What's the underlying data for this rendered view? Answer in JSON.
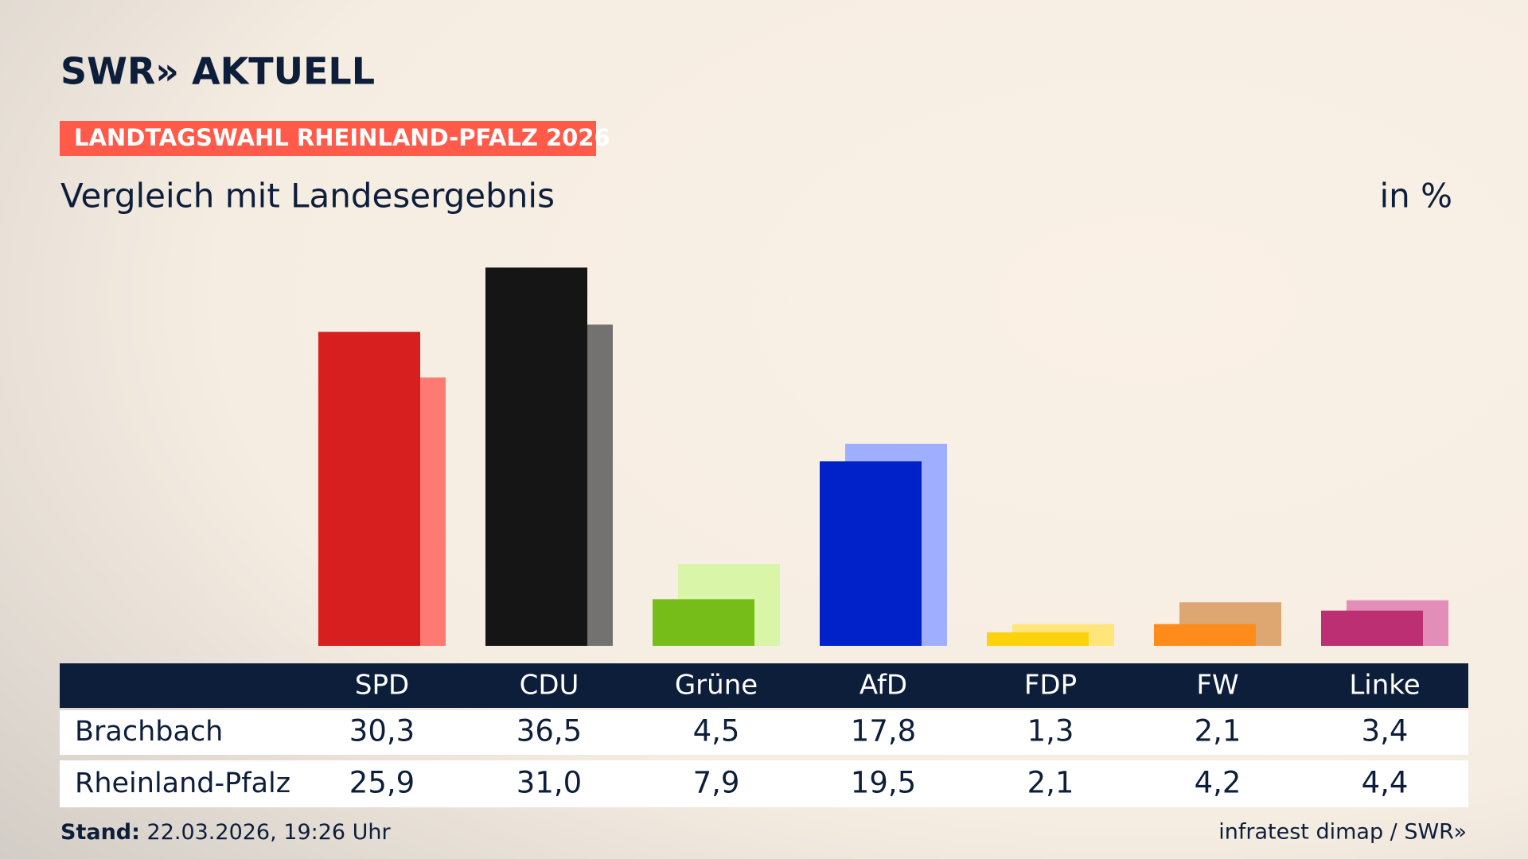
{
  "chart_data": {
    "type": "bar",
    "brand": "SWR» AKTUELL",
    "badge": "LANDTAGSWAHL RHEINLAND-PFALZ 2026",
    "title": "Vergleich mit Landesergebnis",
    "unit": "in %",
    "categories": [
      "SPD",
      "CDU",
      "Grüne",
      "AfD",
      "FDP",
      "FW",
      "Linke"
    ],
    "series": [
      {
        "name": "Brachbach",
        "colors": [
          "#d71f1f",
          "#151515",
          "#76bd1a",
          "#0022c8",
          "#fcd20c",
          "#ff8c1a",
          "#bc2f72"
        ],
        "values": [
          30.3,
          36.5,
          4.5,
          17.8,
          1.3,
          2.1,
          3.4
        ],
        "value_labels": [
          "30,3",
          "36,5",
          "4,5",
          "17,8",
          "1,3",
          "2,1",
          "3,4"
        ]
      },
      {
        "name": "Rheinland-Pfalz",
        "colors": [
          "#ff7a73",
          "#747270",
          "#d8f5a8",
          "#a0aeff",
          "#ffe57a",
          "#dea772",
          "#e38db9"
        ],
        "values": [
          25.9,
          31.0,
          7.9,
          19.5,
          2.1,
          4.2,
          4.4
        ],
        "value_labels": [
          "25,9",
          "31,0",
          "7,9",
          "19,5",
          "2,1",
          "4,2",
          "4,4"
        ]
      }
    ],
    "footer_label": "Stand:",
    "footer_date": "22.03.2026, 19:26 Uhr",
    "source": "infratest dimap / SWR»"
  }
}
